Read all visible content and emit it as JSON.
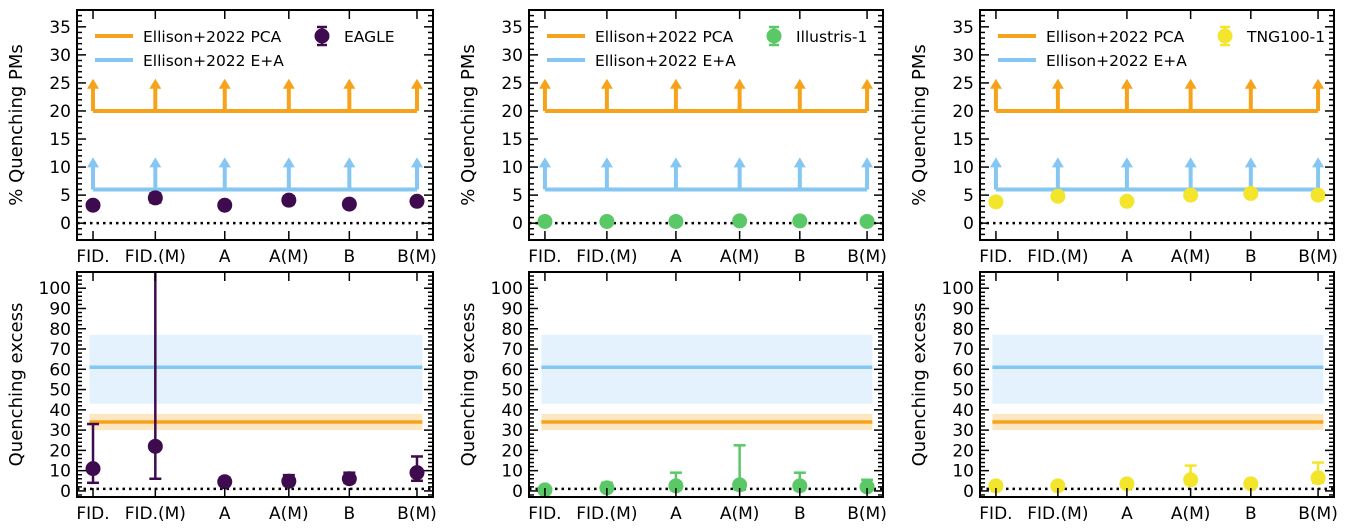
{
  "colors": {
    "pca": "#f6a31b",
    "pca_band": "#fde7c3",
    "ea": "#85c6f2",
    "ea_band": "#e3f2fd",
    "eagle": "#3f0b4f",
    "illustris": "#5ac866",
    "tng": "#f3e52c"
  },
  "chart_data": [
    {
      "type": "scatter",
      "panel": "top-left",
      "ylabel": "% Quenching PMs",
      "categories": [
        "FID.",
        "FID.(M)",
        "A",
        "A(M)",
        "B",
        "B(M)"
      ],
      "ylim": [
        -3,
        38
      ],
      "yticks": [
        0,
        5,
        10,
        15,
        20,
        25,
        30,
        35
      ],
      "reference_lines": [
        {
          "name": "Ellison+2022 PCA",
          "value": 20,
          "lower_limit": true
        },
        {
          "name": "Ellison+2022 E+A",
          "value": 6,
          "lower_limit": true
        }
      ],
      "baseline": 0,
      "series": [
        {
          "name": "EAGLE",
          "values": [
            3.2,
            4.5,
            3.2,
            4.1,
            3.4,
            3.9
          ],
          "err_low": [
            0.5,
            0.8,
            0.5,
            0.7,
            0.5,
            0.6
          ],
          "err_high": [
            0.5,
            0.8,
            0.5,
            0.7,
            0.5,
            0.6
          ]
        }
      ],
      "legend": "top"
    },
    {
      "type": "scatter",
      "panel": "top-middle",
      "ylabel": "% Quenching PMs",
      "categories": [
        "FID.",
        "FID.(M)",
        "A",
        "A(M)",
        "B",
        "B(M)"
      ],
      "ylim": [
        -3,
        38
      ],
      "yticks": [
        0,
        5,
        10,
        15,
        20,
        25,
        30,
        35
      ],
      "reference_lines": [
        {
          "name": "Ellison+2022 PCA",
          "value": 20,
          "lower_limit": true
        },
        {
          "name": "Ellison+2022 E+A",
          "value": 6,
          "lower_limit": true
        }
      ],
      "baseline": 0,
      "series": [
        {
          "name": "Illustris-1",
          "values": [
            0.3,
            0.3,
            0.3,
            0.4,
            0.4,
            0.3
          ],
          "err_low": [
            0.2,
            0.2,
            0.2,
            0.2,
            0.2,
            0.2
          ],
          "err_high": [
            0.2,
            0.2,
            0.2,
            0.2,
            0.2,
            0.2
          ]
        }
      ],
      "legend": "top"
    },
    {
      "type": "scatter",
      "panel": "top-right",
      "ylabel": "% Quenching PMs",
      "categories": [
        "FID.",
        "FID.(M)",
        "A",
        "A(M)",
        "B",
        "B(M)"
      ],
      "ylim": [
        -3,
        38
      ],
      "yticks": [
        0,
        5,
        10,
        15,
        20,
        25,
        30,
        35
      ],
      "reference_lines": [
        {
          "name": "Ellison+2022 PCA",
          "value": 20,
          "lower_limit": true
        },
        {
          "name": "Ellison+2022 E+A",
          "value": 6,
          "lower_limit": true
        }
      ],
      "baseline": 0,
      "series": [
        {
          "name": "TNG100-1",
          "values": [
            3.8,
            4.8,
            3.9,
            5.0,
            5.3,
            5.0
          ],
          "err_low": [
            0.5,
            0.6,
            0.5,
            0.6,
            0.6,
            0.6
          ],
          "err_high": [
            0.5,
            0.6,
            0.5,
            0.6,
            0.6,
            0.6
          ]
        }
      ],
      "legend": "top"
    },
    {
      "type": "scatter",
      "panel": "bottom-left",
      "ylabel": "Quenching excess",
      "categories": [
        "FID.",
        "FID.(M)",
        "A",
        "A(M)",
        "B",
        "B(M)"
      ],
      "ylim": [
        -3,
        108
      ],
      "yticks": [
        0,
        10,
        20,
        30,
        40,
        50,
        60,
        70,
        80,
        90,
        100
      ],
      "reference_bands": [
        {
          "name": "Ellison+2022 PCA",
          "value": 34,
          "low": 30,
          "high": 38
        },
        {
          "name": "Ellison+2022 E+A",
          "value": 61,
          "low": 43,
          "high": 77
        }
      ],
      "baseline": 1,
      "series": [
        {
          "name": "EAGLE",
          "values": [
            11,
            22,
            4.5,
            4.8,
            6,
            9
          ],
          "err_low": [
            7,
            16,
            1.5,
            2,
            2,
            4
          ],
          "err_high": [
            22,
            110,
            2,
            3,
            3,
            8
          ]
        }
      ]
    },
    {
      "type": "scatter",
      "panel": "bottom-middle",
      "ylabel": "Quenching excess",
      "categories": [
        "FID.",
        "FID.(M)",
        "A",
        "A(M)",
        "B",
        "B(M)"
      ],
      "ylim": [
        -3,
        108
      ],
      "yticks": [
        0,
        10,
        20,
        30,
        40,
        50,
        60,
        70,
        80,
        90,
        100
      ],
      "reference_bands": [
        {
          "name": "Ellison+2022 PCA",
          "value": 34,
          "low": 30,
          "high": 38
        },
        {
          "name": "Ellison+2022 E+A",
          "value": 61,
          "low": 43,
          "high": 77
        }
      ],
      "baseline": 1,
      "series": [
        {
          "name": "Illustris-1",
          "values": [
            0.5,
            1.5,
            2.5,
            3,
            2.5,
            2
          ],
          "err_low": [
            0.5,
            1.5,
            2,
            2.5,
            2,
            1.5
          ],
          "err_high": [
            1,
            2.5,
            6.5,
            19.5,
            6.5,
            3.5
          ]
        }
      ]
    },
    {
      "type": "scatter",
      "panel": "bottom-right",
      "ylabel": "Quenching excess",
      "categories": [
        "FID.",
        "FID.(M)",
        "A",
        "A(M)",
        "B",
        "B(M)"
      ],
      "ylim": [
        -3,
        108
      ],
      "yticks": [
        0,
        10,
        20,
        30,
        40,
        50,
        60,
        70,
        80,
        90,
        100
      ],
      "reference_bands": [
        {
          "name": "Ellison+2022 PCA",
          "value": 34,
          "low": 30,
          "high": 38
        },
        {
          "name": "Ellison+2022 E+A",
          "value": 61,
          "low": 43,
          "high": 77
        }
      ],
      "baseline": 1,
      "series": [
        {
          "name": "TNG100-1",
          "values": [
            2.5,
            2.5,
            3.5,
            5.5,
            3.5,
            6.5
          ],
          "err_low": [
            1,
            1,
            1,
            2,
            1,
            2.5
          ],
          "err_high": [
            1,
            1,
            1,
            7,
            1,
            7.5
          ]
        }
      ]
    }
  ]
}
